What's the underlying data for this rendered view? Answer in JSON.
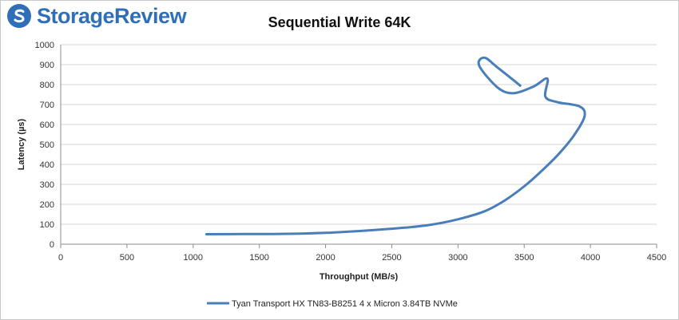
{
  "brand": {
    "name": "StorageReview",
    "accent": "#2f6fb8",
    "icon": "storagereview-logo-icon"
  },
  "chart_data": {
    "type": "line",
    "title": "Sequential Write 64K",
    "xlabel": "Throughput (MB/s)",
    "ylabel": "Latency (µs)",
    "xlim": [
      0,
      4500
    ],
    "ylim": [
      0,
      1000
    ],
    "x_ticks": [
      0,
      500,
      1000,
      1500,
      2000,
      2500,
      3000,
      3500,
      4000,
      4500
    ],
    "y_ticks": [
      0,
      100,
      200,
      300,
      400,
      500,
      600,
      700,
      800,
      900,
      1000
    ],
    "grid": true,
    "legend_position": "bottom",
    "series": [
      {
        "name": "Tyan Transport HX TN83-B8251 4 x Micron 3.84TB NVMe",
        "color": "#4a7ebb",
        "points": [
          [
            1100,
            50
          ],
          [
            1400,
            51
          ],
          [
            1700,
            52
          ],
          [
            2000,
            57
          ],
          [
            2300,
            68
          ],
          [
            2600,
            83
          ],
          [
            2800,
            98
          ],
          [
            3000,
            125
          ],
          [
            3200,
            165
          ],
          [
            3350,
            218
          ],
          [
            3500,
            290
          ],
          [
            3620,
            360
          ],
          [
            3750,
            445
          ],
          [
            3870,
            540
          ],
          [
            3955,
            640
          ],
          [
            3920,
            690
          ],
          [
            3750,
            712
          ],
          [
            3660,
            740
          ],
          [
            3675,
            830
          ],
          [
            3570,
            790
          ],
          [
            3420,
            757
          ],
          [
            3300,
            785
          ],
          [
            3160,
            895
          ],
          [
            3200,
            935
          ],
          [
            3300,
            885
          ],
          [
            3470,
            795
          ]
        ]
      }
    ]
  }
}
